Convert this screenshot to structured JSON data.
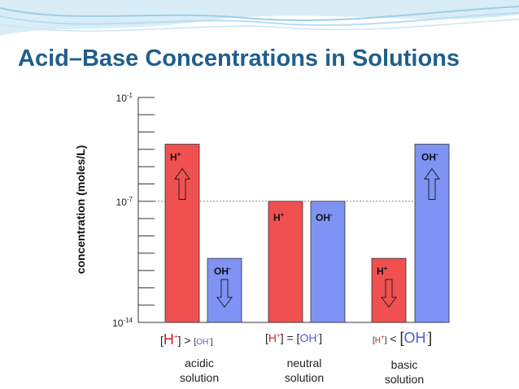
{
  "slide": {
    "title": "Acid–Base Concentrations in Solutions"
  },
  "chart_data": {
    "type": "bar",
    "ylabel": "concentration (moles/L)",
    "yscale": "log",
    "ylim": [
      "10^-14",
      "10^-1"
    ],
    "yticks": [
      {
        "base": "10",
        "exp": "-1",
        "value": -1
      },
      {
        "base": "10",
        "exp": "-7",
        "value": -7
      },
      {
        "base": "10",
        "exp": "-14",
        "value": -14
      }
    ],
    "reference_line": {
      "value": -7,
      "style": "dashed"
    },
    "groups": [
      {
        "key": "acidic",
        "label": [
          "acidic",
          "solution"
        ],
        "condition": {
          "left": "H",
          "op": ">",
          "right": "OH",
          "emphasis": "left"
        },
        "bars": [
          {
            "label": "H",
            "sup": "+",
            "log_value": -3.7,
            "color": "#f05050",
            "arrow": "up"
          },
          {
            "label": "OH",
            "sup": "-",
            "log_value": -10.3,
            "color": "#7f93f5",
            "arrow": "down"
          }
        ]
      },
      {
        "key": "neutral",
        "label": [
          "neutral",
          "solution"
        ],
        "condition": {
          "left": "H",
          "op": "=",
          "right": "OH",
          "emphasis": "none"
        },
        "bars": [
          {
            "label": "H",
            "sup": "+",
            "log_value": -7,
            "color": "#f05050",
            "arrow": "none"
          },
          {
            "label": "OH",
            "sup": "-",
            "log_value": -7,
            "color": "#7f93f5",
            "arrow": "none"
          }
        ]
      },
      {
        "key": "basic",
        "label": [
          "basic",
          "solution"
        ],
        "condition": {
          "left": "H",
          "op": "<",
          "right": "OH",
          "emphasis": "right"
        },
        "bars": [
          {
            "label": "H",
            "sup": "+",
            "log_value": -10.3,
            "color": "#f05050",
            "arrow": "down"
          },
          {
            "label": "OH",
            "sup": "-",
            "log_value": -3.7,
            "color": "#7f93f5",
            "arrow": "up"
          }
        ]
      }
    ],
    "minor_tick_count": 13
  }
}
